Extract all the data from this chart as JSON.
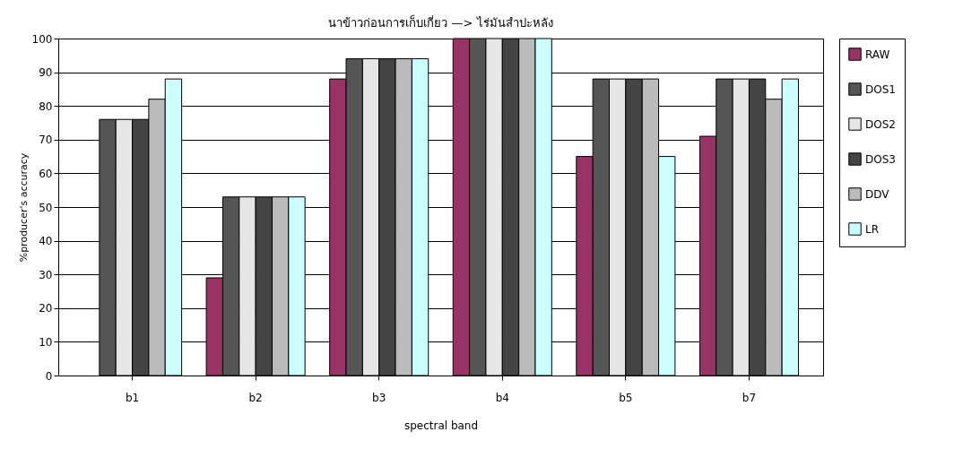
{
  "chart_data": {
    "type": "bar",
    "title": "นาข้าวก่อนการเก็บเกี่ยว —> ไร่มันสำปะหลัง",
    "xlabel": "spectral band",
    "ylabel": "%producer's accuracy",
    "categories": [
      "b1",
      "b2",
      "b3",
      "b4",
      "b5",
      "b7"
    ],
    "series": [
      {
        "name": "RAW",
        "color": "#993366",
        "values": [
          null,
          29,
          88,
          100,
          65,
          71
        ]
      },
      {
        "name": "DOS1",
        "color": "#555555",
        "values": [
          76,
          53,
          94,
          100,
          88,
          88
        ]
      },
      {
        "name": "DOS2",
        "color": "#e6e6e6",
        "values": [
          76,
          53,
          94,
          100,
          88,
          88
        ]
      },
      {
        "name": "DOS3",
        "color": "#444444",
        "values": [
          76,
          53,
          94,
          100,
          88,
          88
        ]
      },
      {
        "name": "DDV",
        "color": "#bbbbbb",
        "values": [
          82,
          53,
          94,
          100,
          88,
          82
        ]
      },
      {
        "name": "LR",
        "color": "#ccffff",
        "values": [
          88,
          53,
          94,
          100,
          65,
          88
        ]
      }
    ],
    "ylim": [
      0,
      100
    ],
    "yticks": [
      0,
      10,
      20,
      30,
      40,
      50,
      60,
      70,
      80,
      90,
      100
    ],
    "grid": "y",
    "legend": "right"
  }
}
